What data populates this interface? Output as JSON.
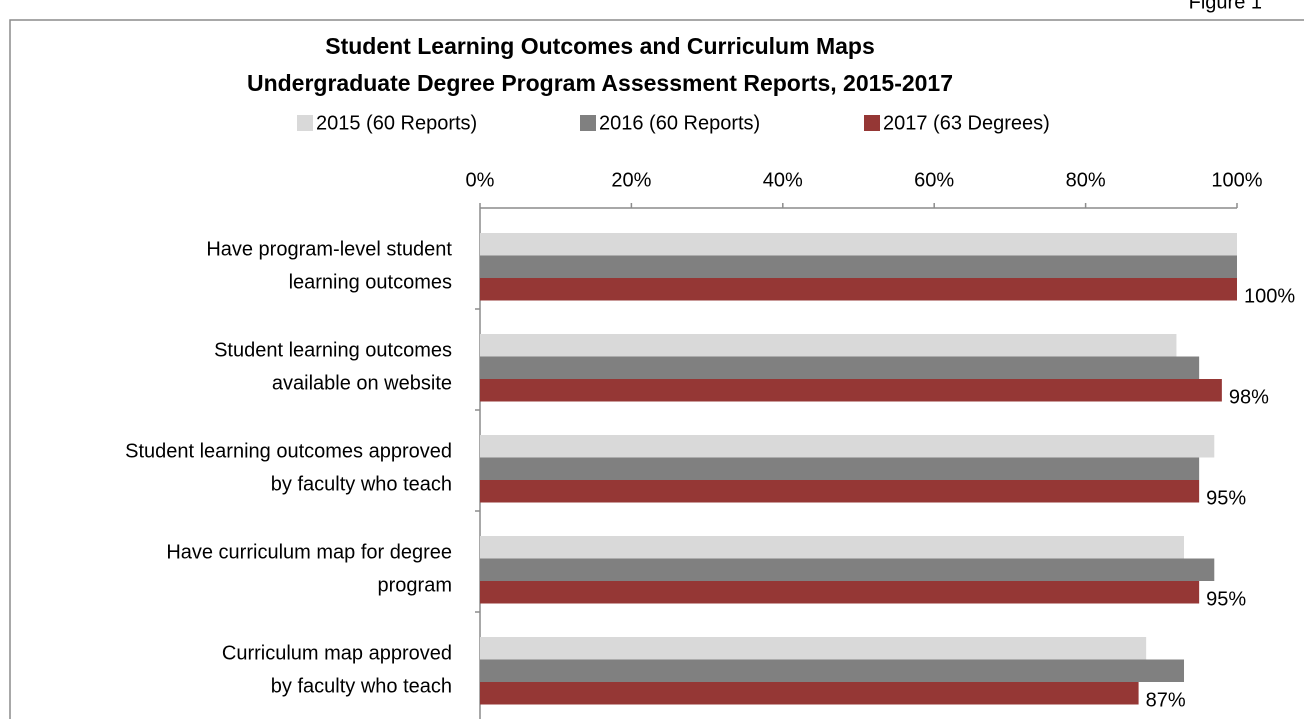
{
  "chart_data": {
    "type": "hbar",
    "annotation": "Figure 1",
    "title": [
      "Student Learning Outcomes and Curriculum Maps",
      "Undergraduate Degree Program Assessment Reports, 2015-2017"
    ],
    "categories": [
      [
        "Have program-level student",
        "learning outcomes"
      ],
      [
        "Student learning outcomes",
        "available on website"
      ],
      [
        "Student learning outcomes approved",
        "by faculty who teach"
      ],
      [
        "Have curriculum map for degree",
        "program"
      ],
      [
        "Curriculum map approved",
        "by faculty who teach"
      ]
    ],
    "series": [
      {
        "name": "2015 (60 Reports)",
        "color": "#d9d9d9",
        "values": [
          100,
          92,
          97,
          93,
          88
        ]
      },
      {
        "name": "2016 (60 Reports)",
        "color": "#808080",
        "values": [
          100,
          95,
          95,
          97,
          93
        ]
      },
      {
        "name": "2017 (63 Degrees)",
        "color": "#953735",
        "values": [
          100,
          98,
          95,
          95,
          87
        ],
        "value_labels": [
          "100%",
          "98%",
          "95%",
          "95%",
          "87%"
        ]
      }
    ],
    "xlim": [
      0,
      100
    ],
    "xticks": [
      {
        "value": 0,
        "label": "0%"
      },
      {
        "value": 20,
        "label": "20%"
      },
      {
        "value": 40,
        "label": "40%"
      },
      {
        "value": 60,
        "label": "60%"
      },
      {
        "value": 80,
        "label": "80%"
      },
      {
        "value": 100,
        "label": "100%"
      }
    ],
    "legend": "top"
  }
}
